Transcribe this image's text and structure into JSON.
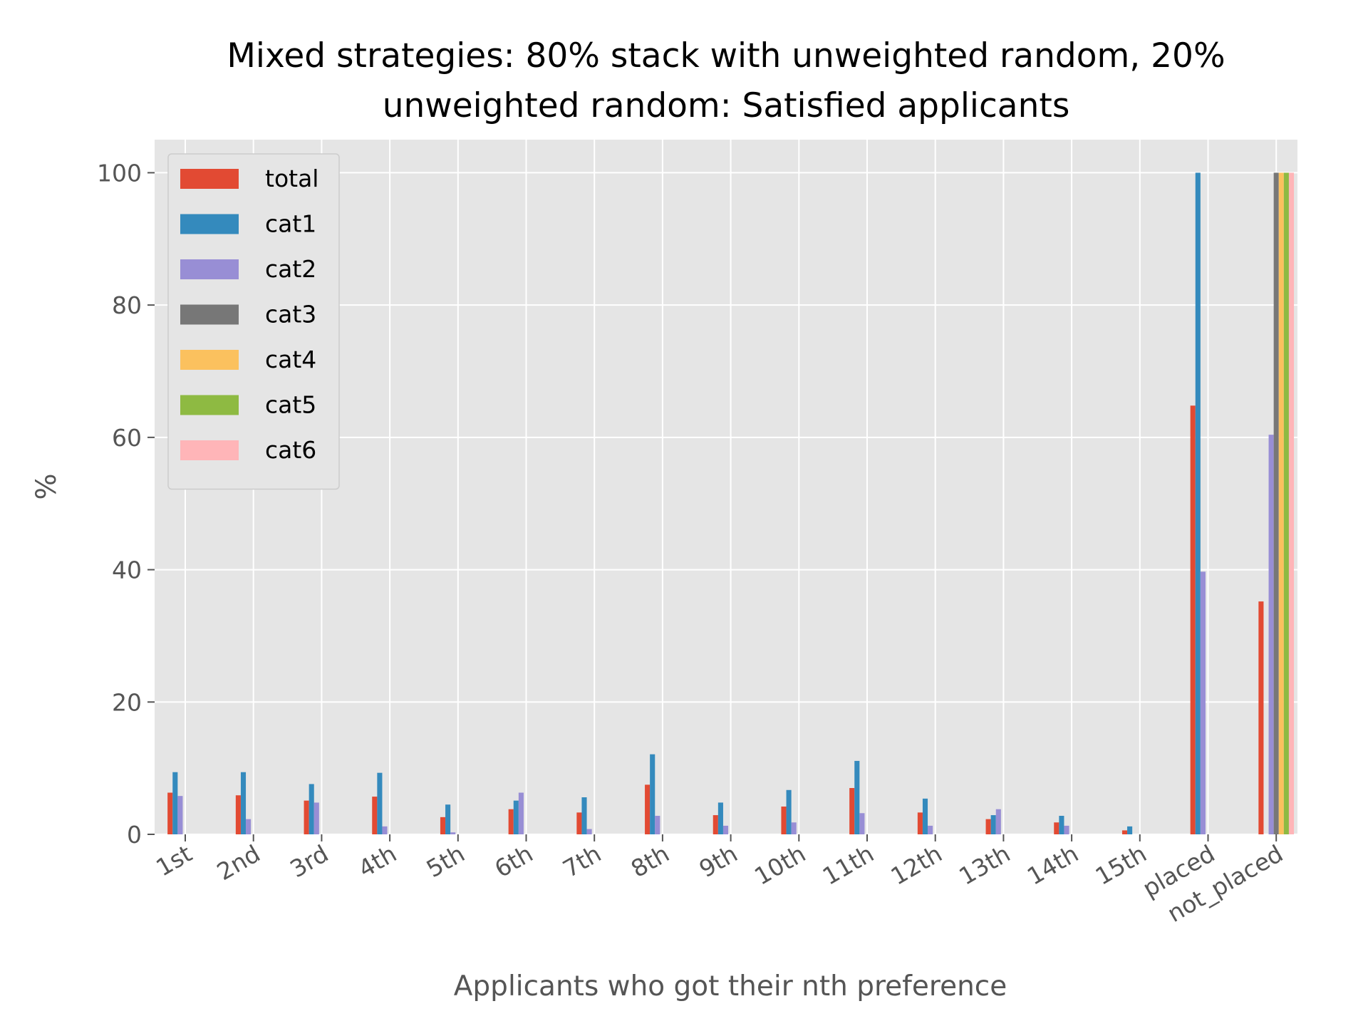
{
  "chart_data": {
    "type": "bar",
    "title_lines": [
      "Mixed strategies: 80% stack with unweighted random, 20%",
      "unweighted random: Satisfied applicants"
    ],
    "xlabel": "Applicants who got their nth preference",
    "ylabel": "%",
    "ylim": [
      0,
      105
    ],
    "yticks": [
      0,
      20,
      40,
      60,
      80,
      100
    ],
    "grid": true,
    "legend_position": "top-left",
    "categories": [
      "1st",
      "2nd",
      "3rd",
      "4th",
      "5th",
      "6th",
      "7th",
      "8th",
      "9th",
      "10th",
      "11th",
      "12th",
      "13th",
      "14th",
      "15th",
      "placed",
      "not_placed"
    ],
    "series": [
      {
        "name": "total",
        "color": "#E24A33",
        "values": [
          6.3,
          5.9,
          5.1,
          5.7,
          2.6,
          3.8,
          3.3,
          7.5,
          2.9,
          4.2,
          7.0,
          3.3,
          2.3,
          1.8,
          0.6,
          64.8,
          35.2
        ]
      },
      {
        "name": "cat1",
        "color": "#348ABD",
        "values": [
          9.4,
          9.4,
          7.6,
          9.3,
          4.5,
          5.1,
          5.6,
          12.1,
          4.8,
          6.7,
          11.1,
          5.4,
          2.9,
          2.8,
          1.2,
          100,
          0
        ]
      },
      {
        "name": "cat2",
        "color": "#988ED5",
        "values": [
          5.8,
          2.3,
          4.8,
          1.2,
          0.3,
          6.3,
          0.8,
          2.8,
          1.3,
          1.8,
          3.2,
          1.3,
          3.8,
          1.3,
          0,
          39.7,
          60.4
        ]
      },
      {
        "name": "cat3",
        "color": "#777777",
        "values": [
          0,
          0,
          0,
          0,
          0,
          0,
          0,
          0,
          0,
          0,
          0,
          0,
          0,
          0,
          0,
          0,
          100
        ]
      },
      {
        "name": "cat4",
        "color": "#FBC15E",
        "values": [
          0,
          0,
          0,
          0,
          0,
          0,
          0,
          0,
          0,
          0,
          0,
          0,
          0,
          0,
          0,
          0,
          100
        ]
      },
      {
        "name": "cat5",
        "color": "#8EBA42",
        "values": [
          0,
          0,
          0,
          0,
          0,
          0,
          0,
          0,
          0,
          0,
          0,
          0,
          0,
          0,
          0,
          0,
          100
        ]
      },
      {
        "name": "cat6",
        "color": "#FFB5B8",
        "values": [
          0,
          0,
          0,
          0,
          0,
          0,
          0,
          0,
          0,
          0,
          0,
          0,
          0,
          0,
          0,
          0,
          100
        ]
      }
    ]
  }
}
